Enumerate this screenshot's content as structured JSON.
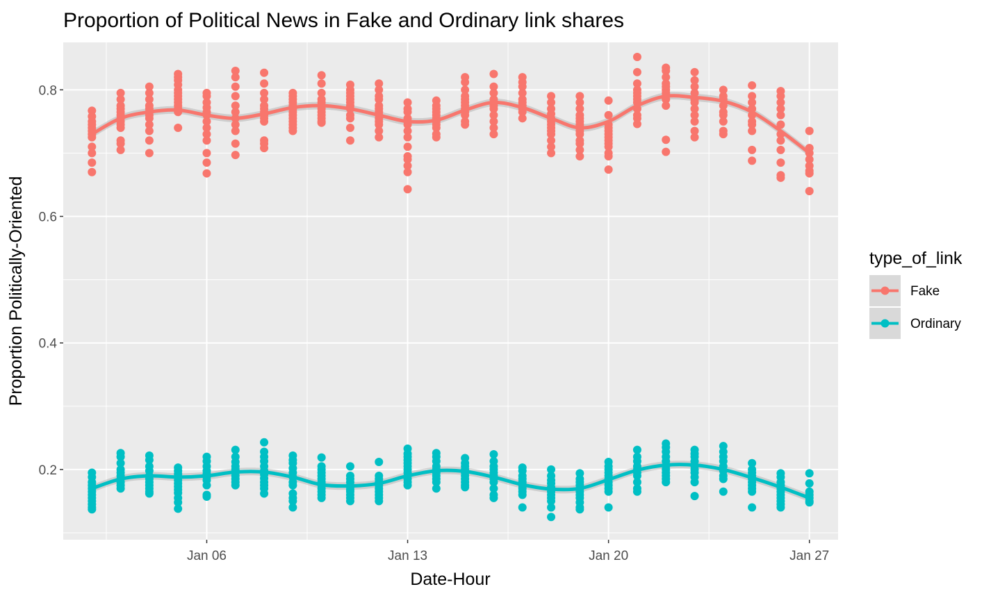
{
  "chart_data": {
    "type": "scatter",
    "title": "Proportion of Political News in Fake and Ordinary link shares",
    "xlabel": "Date-Hour",
    "ylabel": "Proportion Politically-Oriented",
    "x_ticks": [
      "Jan 06",
      "Jan 13",
      "Jan 20",
      "Jan 27"
    ],
    "y_ticks": [
      "0.2",
      "0.4",
      "0.6",
      "0.8"
    ],
    "y_tick_values": [
      0.2,
      0.4,
      0.6,
      0.8
    ],
    "xlim": [
      "2019-01-01",
      "2019-01-28"
    ],
    "ylim": [
      0.089,
      0.875
    ],
    "grid": true,
    "legend": {
      "title": "type_of_link",
      "position": "right"
    },
    "days": [
      "2019-01-02",
      "2019-01-03",
      "2019-01-04",
      "2019-01-05",
      "2019-01-06",
      "2019-01-07",
      "2019-01-08",
      "2019-01-09",
      "2019-01-10",
      "2019-01-11",
      "2019-01-12",
      "2019-01-13",
      "2019-01-14",
      "2019-01-15",
      "2019-01-16",
      "2019-01-17",
      "2019-01-18",
      "2019-01-19",
      "2019-01-20",
      "2019-01-21",
      "2019-01-22",
      "2019-01-23",
      "2019-01-24",
      "2019-01-25",
      "2019-01-26",
      "2019-01-27"
    ],
    "series": [
      {
        "name": "Fake",
        "color": "#F8766D",
        "smooth": [
          0.73,
          0.755,
          0.765,
          0.768,
          0.76,
          0.755,
          0.762,
          0.772,
          0.775,
          0.77,
          0.76,
          0.75,
          0.752,
          0.768,
          0.78,
          0.772,
          0.755,
          0.74,
          0.75,
          0.775,
          0.79,
          0.788,
          0.782,
          0.765,
          0.735,
          0.7
        ],
        "points": [
          [
            0.767,
            0.758,
            0.75,
            0.745,
            0.74,
            0.735,
            0.73,
            0.725,
            0.71,
            0.7,
            0.685,
            0.67
          ],
          [
            0.795,
            0.785,
            0.775,
            0.77,
            0.765,
            0.76,
            0.755,
            0.75,
            0.745,
            0.74,
            0.72,
            0.715,
            0.705
          ],
          [
            0.805,
            0.795,
            0.785,
            0.775,
            0.77,
            0.765,
            0.76,
            0.755,
            0.745,
            0.735,
            0.72,
            0.7
          ],
          [
            0.825,
            0.82,
            0.815,
            0.808,
            0.8,
            0.795,
            0.79,
            0.785,
            0.78,
            0.775,
            0.77,
            0.765,
            0.74
          ],
          [
            0.795,
            0.79,
            0.78,
            0.772,
            0.765,
            0.76,
            0.75,
            0.74,
            0.73,
            0.72,
            0.7,
            0.685,
            0.668
          ],
          [
            0.83,
            0.82,
            0.805,
            0.79,
            0.775,
            0.765,
            0.755,
            0.745,
            0.735,
            0.715,
            0.697
          ],
          [
            0.827,
            0.81,
            0.795,
            0.785,
            0.775,
            0.77,
            0.765,
            0.76,
            0.755,
            0.75,
            0.72,
            0.715,
            0.708
          ],
          [
            0.795,
            0.79,
            0.785,
            0.78,
            0.775,
            0.77,
            0.765,
            0.76,
            0.755,
            0.75,
            0.745,
            0.74,
            0.735
          ],
          [
            0.823,
            0.81,
            0.795,
            0.785,
            0.78,
            0.775,
            0.77,
            0.765,
            0.76,
            0.755,
            0.75,
            0.748
          ],
          [
            0.808,
            0.8,
            0.795,
            0.79,
            0.785,
            0.78,
            0.775,
            0.77,
            0.76,
            0.755,
            0.74,
            0.72
          ],
          [
            0.81,
            0.8,
            0.79,
            0.785,
            0.775,
            0.77,
            0.765,
            0.76,
            0.755,
            0.75,
            0.745,
            0.735,
            0.725
          ],
          [
            0.78,
            0.77,
            0.765,
            0.755,
            0.75,
            0.745,
            0.735,
            0.725,
            0.71,
            0.695,
            0.69,
            0.68,
            0.67,
            0.643
          ],
          [
            0.783,
            0.775,
            0.77,
            0.765,
            0.76,
            0.755,
            0.75,
            0.745,
            0.74,
            0.73,
            0.725
          ],
          [
            0.82,
            0.812,
            0.8,
            0.79,
            0.785,
            0.78,
            0.775,
            0.77,
            0.765,
            0.76,
            0.75,
            0.745
          ],
          [
            0.825,
            0.805,
            0.795,
            0.785,
            0.78,
            0.775,
            0.77,
            0.76,
            0.75,
            0.74,
            0.73
          ],
          [
            0.82,
            0.812,
            0.805,
            0.795,
            0.785,
            0.78,
            0.775,
            0.77,
            0.765,
            0.755
          ],
          [
            0.79,
            0.78,
            0.77,
            0.762,
            0.755,
            0.75,
            0.745,
            0.74,
            0.735,
            0.73,
            0.72,
            0.71,
            0.7
          ],
          [
            0.79,
            0.78,
            0.77,
            0.76,
            0.755,
            0.75,
            0.745,
            0.74,
            0.735,
            0.73,
            0.72,
            0.715,
            0.705,
            0.695
          ],
          [
            0.783,
            0.76,
            0.745,
            0.74,
            0.735,
            0.73,
            0.725,
            0.72,
            0.715,
            0.71,
            0.7,
            0.695,
            0.674
          ],
          [
            0.852,
            0.828,
            0.81,
            0.8,
            0.795,
            0.79,
            0.785,
            0.78,
            0.77,
            0.76,
            0.755,
            0.746
          ],
          [
            0.835,
            0.83,
            0.82,
            0.81,
            0.805,
            0.8,
            0.795,
            0.79,
            0.785,
            0.775,
            0.721,
            0.702
          ],
          [
            0.828,
            0.815,
            0.805,
            0.795,
            0.785,
            0.78,
            0.77,
            0.76,
            0.75,
            0.735,
            0.725
          ],
          [
            0.8,
            0.79,
            0.785,
            0.775,
            0.765,
            0.76,
            0.75,
            0.735,
            0.73
          ],
          [
            0.807,
            0.79,
            0.78,
            0.77,
            0.76,
            0.75,
            0.745,
            0.735,
            0.705,
            0.688
          ],
          [
            0.798,
            0.79,
            0.78,
            0.77,
            0.76,
            0.745,
            0.73,
            0.72,
            0.705,
            0.685,
            0.665,
            0.661
          ],
          [
            0.735,
            0.708,
            0.7,
            0.69,
            0.68,
            0.672,
            0.668,
            0.64
          ]
        ]
      },
      {
        "name": "Ordinary",
        "color": "#00BFC4",
        "smooth": [
          0.17,
          0.185,
          0.19,
          0.188,
          0.19,
          0.196,
          0.196,
          0.188,
          0.176,
          0.174,
          0.178,
          0.19,
          0.198,
          0.197,
          0.188,
          0.176,
          0.169,
          0.17,
          0.184,
          0.199,
          0.207,
          0.207,
          0.2,
          0.187,
          0.172,
          0.155
        ],
        "points": [
          [
            0.195,
            0.188,
            0.18,
            0.175,
            0.17,
            0.165,
            0.16,
            0.155,
            0.15,
            0.145,
            0.14,
            0.137
          ],
          [
            0.226,
            0.22,
            0.21,
            0.2,
            0.195,
            0.19,
            0.185,
            0.18,
            0.175,
            0.17
          ],
          [
            0.222,
            0.215,
            0.205,
            0.198,
            0.19,
            0.185,
            0.18,
            0.175,
            0.17,
            0.165,
            0.162
          ],
          [
            0.203,
            0.198,
            0.193,
            0.188,
            0.183,
            0.178,
            0.173,
            0.168,
            0.163,
            0.155,
            0.148,
            0.138
          ],
          [
            0.22,
            0.213,
            0.205,
            0.198,
            0.193,
            0.188,
            0.183,
            0.175,
            0.16,
            0.157
          ],
          [
            0.231,
            0.22,
            0.212,
            0.205,
            0.2,
            0.195,
            0.19,
            0.185,
            0.18,
            0.175
          ],
          [
            0.243,
            0.228,
            0.22,
            0.213,
            0.205,
            0.198,
            0.192,
            0.186,
            0.18,
            0.175,
            0.17,
            0.162
          ],
          [
            0.222,
            0.215,
            0.21,
            0.202,
            0.195,
            0.188,
            0.18,
            0.175,
            0.162,
            0.155,
            0.15,
            0.14
          ],
          [
            0.219,
            0.205,
            0.2,
            0.195,
            0.19,
            0.185,
            0.18,
            0.175,
            0.17,
            0.165,
            0.16,
            0.155
          ],
          [
            0.205,
            0.19,
            0.185,
            0.18,
            0.175,
            0.172,
            0.168,
            0.165,
            0.16,
            0.155,
            0.15
          ],
          [
            0.212,
            0.19,
            0.185,
            0.18,
            0.175,
            0.17,
            0.165,
            0.16,
            0.155,
            0.15
          ],
          [
            0.233,
            0.225,
            0.22,
            0.215,
            0.21,
            0.205,
            0.2,
            0.195,
            0.19,
            0.185,
            0.18,
            0.175
          ],
          [
            0.226,
            0.22,
            0.213,
            0.205,
            0.2,
            0.195,
            0.19,
            0.185,
            0.18,
            0.17
          ],
          [
            0.218,
            0.21,
            0.205,
            0.2,
            0.195,
            0.19,
            0.185,
            0.18,
            0.175,
            0.172
          ],
          [
            0.224,
            0.213,
            0.205,
            0.2,
            0.195,
            0.19,
            0.185,
            0.18,
            0.17,
            0.16,
            0.155
          ],
          [
            0.203,
            0.198,
            0.19,
            0.185,
            0.18,
            0.175,
            0.17,
            0.165,
            0.16,
            0.14
          ],
          [
            0.2,
            0.19,
            0.183,
            0.178,
            0.172,
            0.165,
            0.16,
            0.155,
            0.15,
            0.14,
            0.125
          ],
          [
            0.194,
            0.185,
            0.18,
            0.175,
            0.17,
            0.165,
            0.16,
            0.155,
            0.148,
            0.14,
            0.137
          ],
          [
            0.212,
            0.205,
            0.2,
            0.195,
            0.19,
            0.185,
            0.18,
            0.175,
            0.17,
            0.165,
            0.14
          ],
          [
            0.231,
            0.22,
            0.213,
            0.205,
            0.2,
            0.195,
            0.19,
            0.18,
            0.17,
            0.165
          ],
          [
            0.241,
            0.235,
            0.228,
            0.22,
            0.213,
            0.205,
            0.2,
            0.195,
            0.19,
            0.185,
            0.18
          ],
          [
            0.231,
            0.225,
            0.22,
            0.213,
            0.205,
            0.2,
            0.195,
            0.188,
            0.18,
            0.158
          ],
          [
            0.237,
            0.228,
            0.22,
            0.213,
            0.205,
            0.198,
            0.19,
            0.185,
            0.165
          ],
          [
            0.21,
            0.2,
            0.195,
            0.19,
            0.185,
            0.18,
            0.175,
            0.17,
            0.165,
            0.14
          ],
          [
            0.194,
            0.188,
            0.18,
            0.175,
            0.17,
            0.165,
            0.16,
            0.155,
            0.15,
            0.145,
            0.14
          ],
          [
            0.194,
            0.178,
            0.165,
            0.16,
            0.155,
            0.15,
            0.148
          ]
        ]
      }
    ]
  }
}
